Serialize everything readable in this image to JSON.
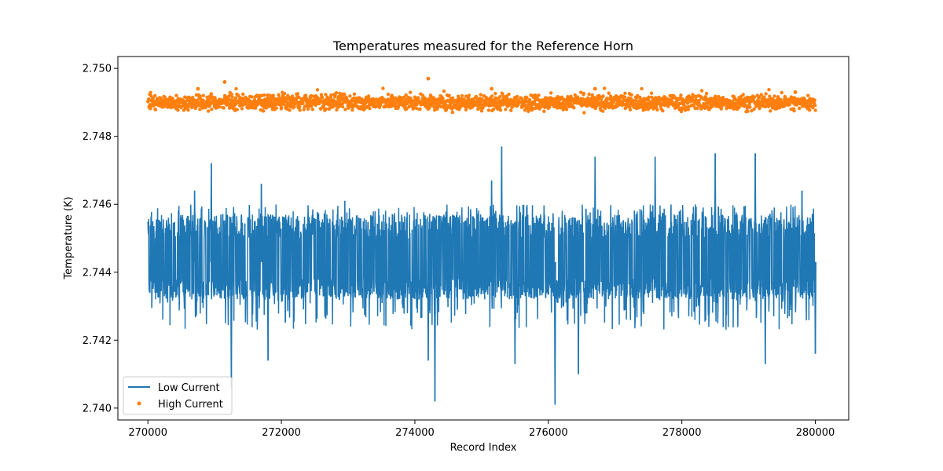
{
  "chart_data": {
    "type": "line",
    "title": "Temperatures measured for the Reference Horn",
    "xlabel": "Record Index",
    "ylabel": "Temperature (K)",
    "xlim": [
      269550,
      280500
    ],
    "ylim": [
      2.73965,
      2.75035
    ],
    "x_ticks": [
      270000,
      272000,
      274000,
      276000,
      278000,
      280000
    ],
    "y_ticks": [
      2.74,
      2.742,
      2.744,
      2.746,
      2.748,
      2.75
    ],
    "legend_position": "lower-left",
    "series": [
      {
        "name": "Low Current",
        "style": "line",
        "color": "#1f77b4",
        "x_range": [
          270000,
          280000
        ],
        "band": [
          2.7432,
          2.7457
        ],
        "center": 2.7443,
        "spikes": [
          {
            "x": 270950,
            "y": 2.7472
          },
          {
            "x": 275300,
            "y": 2.7477
          },
          {
            "x": 276700,
            "y": 2.7474
          },
          {
            "x": 279100,
            "y": 2.7475
          },
          {
            "x": 278500,
            "y": 2.7475
          },
          {
            "x": 277600,
            "y": 2.7474
          },
          {
            "x": 275150,
            "y": 2.7467
          },
          {
            "x": 274300,
            "y": 2.7402
          },
          {
            "x": 276100,
            "y": 2.7401
          },
          {
            "x": 271250,
            "y": 2.7406
          },
          {
            "x": 271800,
            "y": 2.7414
          },
          {
            "x": 274200,
            "y": 2.7414
          },
          {
            "x": 276450,
            "y": 2.741
          },
          {
            "x": 279250,
            "y": 2.7413
          },
          {
            "x": 280000,
            "y": 2.7416
          },
          {
            "x": 275500,
            "y": 2.7413
          },
          {
            "x": 270700,
            "y": 2.7464
          },
          {
            "x": 271700,
            "y": 2.7466
          },
          {
            "x": 272950,
            "y": 2.7461
          },
          {
            "x": 279800,
            "y": 2.7464
          }
        ]
      },
      {
        "name": "High Current",
        "style": "markers",
        "color": "#ff7f0e",
        "x_range": [
          270000,
          280000
        ],
        "band": [
          2.7488,
          2.7492
        ],
        "center": 2.749,
        "spikes": [
          {
            "x": 274200,
            "y": 2.7497
          },
          {
            "x": 271150,
            "y": 2.7496
          },
          {
            "x": 270750,
            "y": 2.7494
          },
          {
            "x": 275150,
            "y": 2.7494
          },
          {
            "x": 276700,
            "y": 2.7494
          },
          {
            "x": 279700,
            "y": 2.7493
          }
        ]
      }
    ]
  }
}
